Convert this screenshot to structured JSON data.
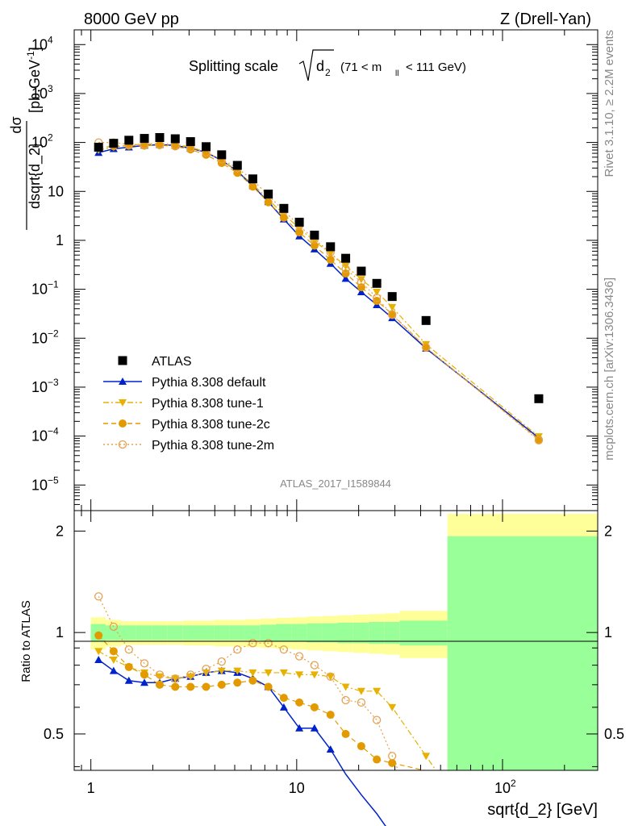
{
  "header": {
    "left": "8000 GeV pp",
    "right": "Z (Drell-Yan)"
  },
  "side": {
    "rivet": "Rivet 3.1.10, ≥ 2.2M events",
    "mcplots": "mcplots.cern.ch [arXiv:1306.3436]"
  },
  "chart_data": {
    "type": "scatter",
    "title": "Splitting scale √d₂ (71 < m_ll < 111 GeV)",
    "title_main": "Splitting scale",
    "title_sym": "d",
    "title_sub": "2",
    "title_cut_pre": "(71 < m",
    "title_cut_sub": "ll",
    "title_cut_post": "< 111 GeV)",
    "ylabel": "dσ/dsqrt{d_2} [pb,GeV⁻¹]",
    "ylabel_num": "dσ",
    "ylabel_den": "dsqrt{d_2}",
    "ylabel_unit": "[pb,GeV",
    "ylabel_unit_sup": "-1",
    "ylabel_unit_end": "]",
    "xlabel": "sqrt{d_2} [GeV]",
    "ratio_ylabel": "Ratio to ATLAS",
    "watermark": "ATLAS_2017_I1589844",
    "x_scale": "log",
    "y_scale": "log",
    "xlim": [
      0.83,
      290
    ],
    "ylim": [
      3e-06,
      20000
    ],
    "ratio_ylim": [
      0.39,
      2.3
    ],
    "legend_position": "lower-left",
    "x_ticks": [
      {
        "label": "1",
        "value": 1
      },
      {
        "label": "10",
        "value": 10
      }
    ],
    "x_tick_pow": {
      "value": 100,
      "base": "10",
      "exp": "2"
    },
    "y_ticks": [
      {
        "value": 10000,
        "base": "10",
        "exp": "4"
      },
      {
        "value": 1000,
        "base": "10",
        "exp": "3"
      },
      {
        "value": 100,
        "base": "10",
        "exp": "2"
      },
      {
        "value": 10,
        "label": "10"
      },
      {
        "value": 1,
        "label": "1"
      },
      {
        "value": 0.1,
        "base": "10",
        "exp": "−1"
      },
      {
        "value": 0.01,
        "base": "10",
        "exp": "−2"
      },
      {
        "value": 0.001,
        "base": "10",
        "exp": "−3"
      },
      {
        "value": 0.0001,
        "base": "10",
        "exp": "−4"
      },
      {
        "value": 1e-05,
        "base": "10",
        "exp": "−5"
      }
    ],
    "ratio_ticks": [
      {
        "value": 0.5,
        "label": "0.5"
      },
      {
        "value": 1,
        "label": "1"
      },
      {
        "value": 2,
        "label": "2"
      }
    ],
    "colors": {
      "atlas": "#000000",
      "default": "#0022cc",
      "tune1": "#e8b000",
      "tune2c": "#e39a00",
      "tune2m": "#e5a050",
      "band_inner": "#99ff99",
      "band_outer": "#ffff99"
    },
    "atlas": {
      "name": "ATLAS",
      "x": [
        1.09,
        1.29,
        1.53,
        1.82,
        2.16,
        2.57,
        3.05,
        3.63,
        4.32,
        5.15,
        6.12,
        7.28,
        8.66,
        10.3,
        12.2,
        14.6,
        17.3,
        20.6,
        24.5,
        29.1,
        42.5,
        150
      ],
      "y": [
        80,
        96,
        111,
        121,
        126,
        119,
        104,
        82,
        56,
        34,
        18,
        8.8,
        4.5,
        2.35,
        1.28,
        0.74,
        0.43,
        0.235,
        0.132,
        0.071,
        0.023,
        0.00058
      ]
    },
    "ratio_edges": [
      1,
      1.18,
      1.4,
      1.66,
      1.98,
      2.35,
      2.8,
      3.33,
      3.96,
      4.7,
      5.6,
      6.66,
      7.92,
      9.42,
      11.2,
      13.3,
      15.8,
      18.8,
      22.4,
      26.6,
      31.6,
      54,
      290
    ],
    "band_inner": [
      0.06,
      0.05,
      0.05,
      0.05,
      0.05,
      0.05,
      0.05,
      0.05,
      0.05,
      0.05,
      0.05,
      0.055,
      0.06,
      0.06,
      0.065,
      0.065,
      0.07,
      0.07,
      0.075,
      0.075,
      0.085,
      0.93
    ],
    "band_outer": [
      0.11,
      0.09,
      0.08,
      0.08,
      0.08,
      0.08,
      0.085,
      0.085,
      0.09,
      0.09,
      0.095,
      0.1,
      0.105,
      0.11,
      0.115,
      0.12,
      0.125,
      0.13,
      0.135,
      0.14,
      0.16,
      1.25
    ],
    "series": [
      {
        "name": "Pythia 8.308 default",
        "key": "default",
        "marker": "triangle-up",
        "line": "solid",
        "x": [
          1.09,
          1.29,
          1.53,
          1.82,
          2.16,
          2.57,
          3.05,
          3.63,
          4.32,
          5.15,
          6.12,
          7.28,
          8.66,
          10.3,
          12.2,
          14.6,
          17.3,
          20.6,
          24.5,
          29.1,
          42.5,
          150
        ],
        "y": [
          62,
          74,
          80,
          87,
          90,
          87,
          76,
          63,
          43,
          26,
          13,
          6.1,
          2.7,
          1.22,
          0.66,
          0.335,
          0.165,
          0.088,
          0.048,
          0.026,
          0.0062,
          9.2e-05
        ],
        "ratio": [
          0.83,
          0.77,
          0.72,
          0.71,
          0.71,
          0.73,
          0.74,
          0.76,
          0.77,
          0.76,
          0.73,
          0.69,
          0.6,
          0.52,
          0.52,
          0.45,
          0.38,
          0.33,
          0.29,
          0.25,
          null,
          null
        ]
      },
      {
        "name": "Pythia 8.308 tune-1",
        "key": "tune1",
        "marker": "triangle-down",
        "line": "dashdot",
        "x": [
          1.09,
          1.29,
          1.53,
          1.82,
          2.16,
          2.57,
          3.05,
          3.63,
          4.32,
          5.15,
          6.12,
          7.28,
          8.66,
          10.3,
          12.2,
          14.6,
          17.3,
          20.6,
          24.5,
          29.1,
          42.5,
          150
        ],
        "y": [
          70,
          80,
          87,
          93,
          96,
          92,
          80,
          64,
          43,
          26,
          14,
          6.8,
          3.4,
          1.76,
          0.96,
          0.54,
          0.3,
          0.16,
          0.088,
          0.043,
          0.0075,
          9.8e-05
        ],
        "ratio": [
          0.88,
          0.83,
          0.79,
          0.76,
          0.74,
          0.73,
          0.74,
          0.76,
          0.77,
          0.77,
          0.76,
          0.76,
          0.76,
          0.75,
          0.75,
          0.74,
          0.69,
          0.67,
          0.67,
          0.6,
          0.43,
          null
        ]
      },
      {
        "name": "Pythia 8.308 tune-2c",
        "key": "tune2c",
        "marker": "circle",
        "line": "dashed",
        "x": [
          1.09,
          1.29,
          1.53,
          1.82,
          2.16,
          2.57,
          3.05,
          3.63,
          4.32,
          5.15,
          6.12,
          7.28,
          8.66,
          10.3,
          12.2,
          14.6,
          17.3,
          20.6,
          24.5,
          29.1,
          42.5,
          150
        ],
        "y": [
          78,
          84,
          86,
          86,
          88,
          83,
          72,
          56,
          38,
          24,
          12.5,
          6,
          2.9,
          1.45,
          0.78,
          0.4,
          0.21,
          0.11,
          0.058,
          0.031,
          0.0064,
          8.5e-05
        ],
        "ratio": [
          0.98,
          0.88,
          0.79,
          0.75,
          0.7,
          0.69,
          0.69,
          0.69,
          0.7,
          0.71,
          0.72,
          0.69,
          0.64,
          0.62,
          0.6,
          0.57,
          0.5,
          0.46,
          0.42,
          0.41,
          null,
          null
        ]
      },
      {
        "name": "Pythia 8.308 tune-2m",
        "key": "tune2m",
        "marker": "circle-open",
        "line": "dotted",
        "x": [
          1.09,
          1.29,
          1.53,
          1.82,
          2.16,
          2.57,
          3.05,
          3.63,
          4.32,
          5.15,
          6.12,
          7.28,
          8.66,
          10.3,
          12.2,
          14.6,
          17.3,
          20.6,
          24.5,
          29.1,
          42.5,
          150
        ],
        "y": [
          100,
          100,
          91,
          90,
          90,
          86,
          78,
          63,
          45,
          30,
          17,
          8.3,
          4,
          2,
          1.04,
          0.57,
          0.26,
          0.14,
          0.067,
          0.03,
          0.0065,
          8.2e-05
        ],
        "ratio": [
          1.28,
          1.04,
          0.89,
          0.81,
          0.75,
          0.73,
          0.75,
          0.78,
          0.82,
          0.89,
          0.93,
          0.93,
          0.89,
          0.85,
          0.8,
          0.74,
          0.63,
          0.62,
          0.55,
          0.43,
          null,
          null
        ]
      }
    ]
  }
}
